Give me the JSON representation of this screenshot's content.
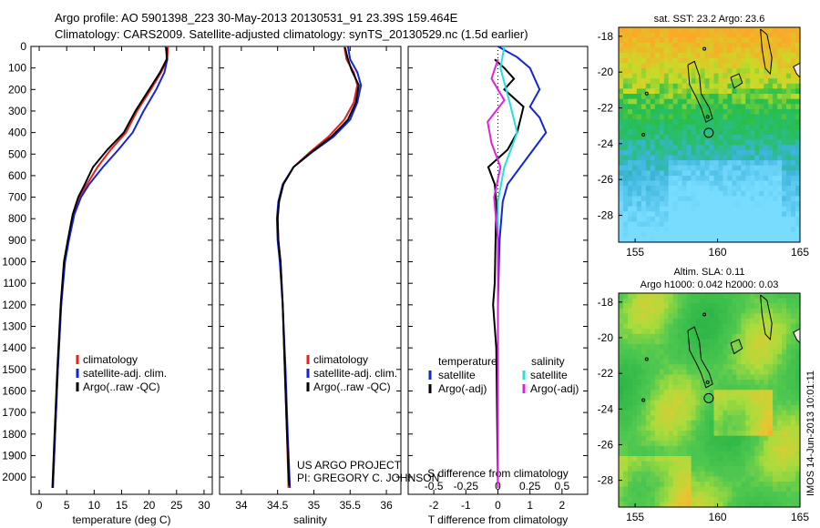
{
  "header": {
    "line1": "Argo profile: AO 5901398_223 30-May-2013 20130531_91 23.39S 159.464E",
    "line2": "Climatology: CARS2009. Satellite-adjusted climatology: synTS_20130529.nc (1.5d earlier)"
  },
  "colors": {
    "climatology": "#e8201e",
    "satellite": "#1326d6",
    "argo": "#000000",
    "sat_sal": "#22e0e0",
    "argo_sal": "#e020e0"
  },
  "credit": {
    "line1": "US ARGO PROJECT",
    "line2": "PI: GREGORY C. JOHNSON"
  },
  "stamp": "IMOS 14-Jun-2013 10:01:11",
  "chart_data": [
    {
      "type": "line",
      "xlabel": "temperature (deg C)",
      "xlim": [
        -1.5,
        31.5
      ],
      "xticks": [
        0,
        5,
        10,
        15,
        20,
        25,
        30
      ],
      "ylim": [
        2080,
        0
      ],
      "yticks": [
        0,
        100,
        200,
        300,
        400,
        500,
        600,
        700,
        800,
        900,
        1000,
        1100,
        1200,
        1300,
        1400,
        1500,
        1600,
        1700,
        1800,
        1900,
        2000
      ],
      "legend": [
        "climatology",
        "satellite-adj. clim.",
        "Argo(..raw -QC)"
      ],
      "legend_position": "lower-middle",
      "series": [
        {
          "name": "climatology",
          "color": "#e8201e",
          "points": [
            [
              23.4,
              0
            ],
            [
              23.3,
              60
            ],
            [
              22.2,
              120
            ],
            [
              20.3,
              200
            ],
            [
              17.8,
              300
            ],
            [
              15.8,
              400
            ],
            [
              13.0,
              480
            ],
            [
              10.6,
              560
            ],
            [
              8.7,
              640
            ],
            [
              7.3,
              700
            ],
            [
              6.2,
              780
            ],
            [
              5.3,
              900
            ],
            [
              4.6,
              1000
            ],
            [
              4.0,
              1200
            ],
            [
              3.4,
              1500
            ],
            [
              2.9,
              1800
            ],
            [
              2.5,
              2050
            ]
          ]
        },
        {
          "name": "satellite-adj. clim.",
          "color": "#1326d6",
          "points": [
            [
              23.0,
              0
            ],
            [
              23.3,
              60
            ],
            [
              22.8,
              120
            ],
            [
              21.3,
              200
            ],
            [
              19.0,
              300
            ],
            [
              17.0,
              400
            ],
            [
              14.4,
              480
            ],
            [
              11.6,
              560
            ],
            [
              9.1,
              640
            ],
            [
              7.6,
              700
            ],
            [
              6.4,
              780
            ],
            [
              5.4,
              900
            ],
            [
              4.7,
              1000
            ],
            [
              4.0,
              1200
            ],
            [
              3.4,
              1500
            ],
            [
              2.9,
              1800
            ],
            [
              2.5,
              2050
            ]
          ]
        },
        {
          "name": "Argo(..raw -QC)",
          "color": "#000000",
          "points": [
            [
              23.2,
              5
            ],
            [
              23.2,
              60
            ],
            [
              22.0,
              120
            ],
            [
              20.0,
              200
            ],
            [
              17.5,
              300
            ],
            [
              15.4,
              400
            ],
            [
              12.4,
              480
            ],
            [
              9.8,
              560
            ],
            [
              8.3,
              640
            ],
            [
              7.1,
              700
            ],
            [
              6.1,
              780
            ],
            [
              5.2,
              900
            ],
            [
              4.5,
              1000
            ],
            [
              3.9,
              1200
            ],
            [
              3.3,
              1500
            ],
            [
              2.8,
              1800
            ],
            [
              2.4,
              2050
            ]
          ]
        }
      ]
    },
    {
      "type": "line",
      "xlabel": "salinity",
      "xlim": [
        33.7,
        36.2
      ],
      "xticks": [
        34,
        34.5,
        35,
        35.5,
        36
      ],
      "ylim": [
        2080,
        0
      ],
      "legend": [
        "climatology",
        "satellite-adj. clim.",
        "Argo(..raw -QC)"
      ],
      "legend_position": "lower-middle",
      "series": [
        {
          "name": "climatology",
          "color": "#e8201e",
          "points": [
            [
              35.42,
              0
            ],
            [
              35.45,
              60
            ],
            [
              35.55,
              120
            ],
            [
              35.6,
              180
            ],
            [
              35.55,
              260
            ],
            [
              35.42,
              340
            ],
            [
              35.2,
              420
            ],
            [
              34.95,
              490
            ],
            [
              34.72,
              560
            ],
            [
              34.58,
              640
            ],
            [
              34.52,
              720
            ],
            [
              34.5,
              800
            ],
            [
              34.51,
              900
            ],
            [
              34.54,
              1000
            ],
            [
              34.57,
              1200
            ],
            [
              34.6,
              1500
            ],
            [
              34.63,
              1800
            ],
            [
              34.65,
              2050
            ]
          ]
        },
        {
          "name": "satellite-adj. clim.",
          "color": "#1326d6",
          "points": [
            [
              35.47,
              0
            ],
            [
              35.5,
              60
            ],
            [
              35.6,
              120
            ],
            [
              35.65,
              180
            ],
            [
              35.6,
              260
            ],
            [
              35.5,
              340
            ],
            [
              35.27,
              420
            ],
            [
              34.98,
              490
            ],
            [
              34.72,
              560
            ],
            [
              34.57,
              640
            ],
            [
              34.51,
              720
            ],
            [
              34.49,
              800
            ],
            [
              34.5,
              900
            ],
            [
              34.53,
              1000
            ],
            [
              34.57,
              1200
            ],
            [
              34.61,
              1500
            ],
            [
              34.64,
              1800
            ],
            [
              34.67,
              2050
            ]
          ]
        },
        {
          "name": "Argo(..raw -QC)",
          "color": "#000000",
          "points": [
            [
              35.43,
              5
            ],
            [
              35.47,
              60
            ],
            [
              35.52,
              110
            ],
            [
              35.62,
              180
            ],
            [
              35.58,
              260
            ],
            [
              35.47,
              340
            ],
            [
              35.24,
              420
            ],
            [
              34.97,
              490
            ],
            [
              34.72,
              560
            ],
            [
              34.58,
              640
            ],
            [
              34.52,
              720
            ],
            [
              34.5,
              800
            ],
            [
              34.51,
              900
            ],
            [
              34.54,
              1000
            ],
            [
              34.57,
              1200
            ],
            [
              34.6,
              1500
            ],
            [
              34.63,
              1800
            ],
            [
              34.66,
              2040
            ]
          ]
        }
      ]
    },
    {
      "type": "line",
      "xlabel": "T difference from climatology",
      "x2label": "S difference from climatology",
      "xlim": [
        -2.8,
        2.8
      ],
      "xticks": [
        -2,
        -1,
        0,
        1,
        2
      ],
      "x2lim": [
        -0.7,
        0.7
      ],
      "x2ticks": [
        -0.5,
        -0.25,
        0,
        0.25,
        0.5
      ],
      "x2ticklabels": [
        "-0.5",
        "-0.25",
        "0",
        "0.25",
        "0.5"
      ],
      "ylim": [
        2080,
        0
      ],
      "legend_temperature": {
        "title": "temperature",
        "items": [
          "satellite",
          "Argo(-adj)"
        ]
      },
      "legend_salinity": {
        "title": "salinity",
        "items": [
          "satellite",
          "Argo(-adj)"
        ]
      },
      "series": [
        {
          "name": "T satellite",
          "color": "#1326d6",
          "points": [
            [
              0,
              0
            ],
            [
              0.6,
              50
            ],
            [
              1.0,
              100
            ],
            [
              1.3,
              200
            ],
            [
              1.0,
              280
            ],
            [
              1.3,
              330
            ],
            [
              1.5,
              400
            ],
            [
              1.1,
              480
            ],
            [
              0.7,
              560
            ],
            [
              0.3,
              640
            ],
            [
              0.15,
              720
            ],
            [
              0.05,
              900
            ],
            [
              0,
              1200
            ],
            [
              0,
              2050
            ]
          ]
        },
        {
          "name": "T Argo(-adj)",
          "color": "#000000",
          "points": [
            [
              -0.1,
              60
            ],
            [
              0.2,
              100
            ],
            [
              0.5,
              150
            ],
            [
              0.2,
              200
            ],
            [
              0.8,
              280
            ],
            [
              0.6,
              400
            ],
            [
              0.3,
              480
            ],
            [
              -0.3,
              560
            ],
            [
              -0.1,
              640
            ],
            [
              -0.05,
              720
            ],
            [
              -0.1,
              1100
            ],
            [
              -0.15,
              1200
            ],
            [
              -0.05,
              1400
            ],
            [
              0,
              2050
            ]
          ]
        },
        {
          "name": "S satellite",
          "color": "#22e0e0",
          "points": [
            [
              0.05,
              0
            ],
            [
              0.02,
              100
            ],
            [
              0.1,
              280
            ],
            [
              0.15,
              400
            ],
            [
              0.05,
              560
            ],
            [
              0,
              720
            ],
            [
              0,
              2050
            ]
          ]
        },
        {
          "name": "S Argo(-adj)",
          "color": "#e020e0",
          "points": [
            [
              0,
              60
            ],
            [
              -0.05,
              150
            ],
            [
              0.05,
              250
            ],
            [
              -0.08,
              350
            ],
            [
              -0.05,
              450
            ],
            [
              0.02,
              560
            ],
            [
              -0.03,
              700
            ],
            [
              0,
              900
            ],
            [
              0,
              2050
            ]
          ]
        }
      ]
    },
    {
      "type": "heatmap",
      "title": "sat. SST: 23.2  Argo: 23.6",
      "xlim": [
        154,
        165
      ],
      "xticks": [
        155,
        160,
        165
      ],
      "ylim": [
        -29.5,
        -17.5
      ],
      "yticks": [
        -18,
        -20,
        -22,
        -24,
        -26,
        -28
      ]
    },
    {
      "type": "heatmap",
      "title_line1": "Altim. SLA: 0.11",
      "title_line2": "Argo h1000: 0.042 h2000: 0.03",
      "xlim": [
        154,
        165
      ],
      "xticks": [
        155,
        160,
        165
      ],
      "ylim": [
        -29.5,
        -17.5
      ],
      "yticks": [
        -18,
        -20,
        -22,
        -24,
        -26,
        -28
      ]
    }
  ]
}
